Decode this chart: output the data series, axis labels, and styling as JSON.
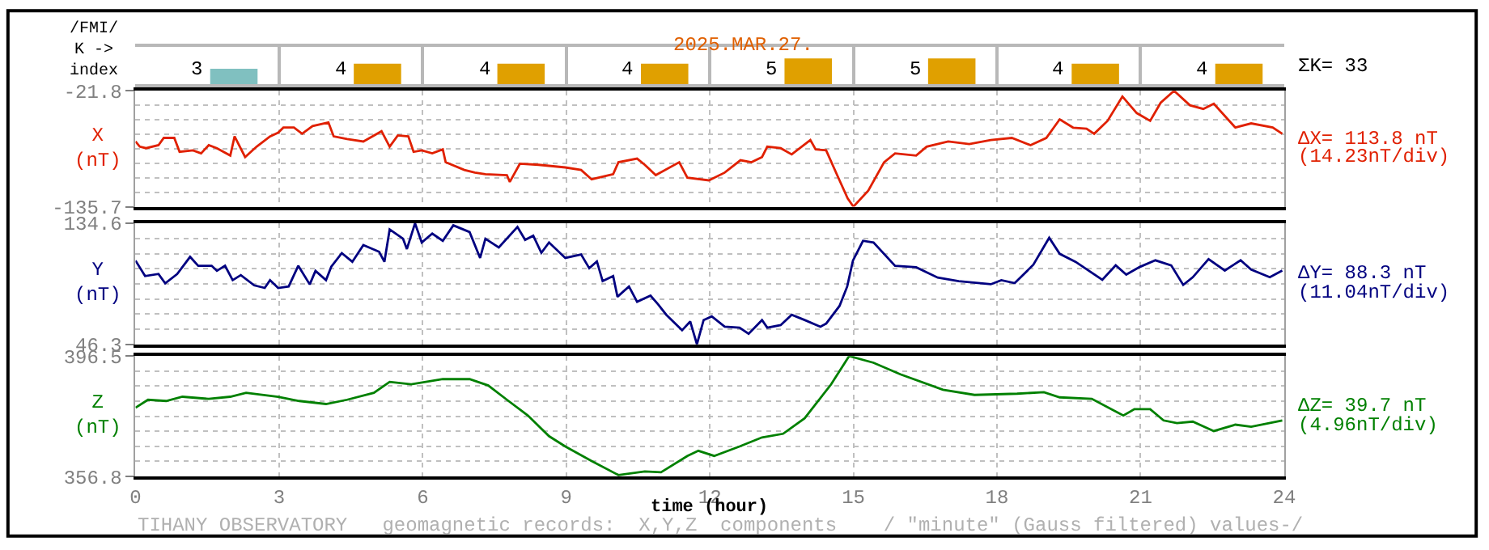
{
  "chart_data": [
    {
      "type": "bar",
      "title": "2025.MAR.27.",
      "ylabel": "/FMI/\nK ->\nindex",
      "categories": [
        null,
        null,
        null,
        null,
        null,
        null,
        null,
        null
      ],
      "values": [
        3,
        4,
        4,
        4,
        5,
        5,
        4,
        4
      ],
      "colors": [
        "#80c0c0",
        "#e0a000",
        "#e0a000",
        "#e0a000",
        "#e0a000",
        "#e0a000",
        "#e0a000",
        "#e0a000"
      ],
      "data_labels": true,
      "annotations": [
        "ΣK= 33"
      ],
      "tick_labels": false,
      "grid": "x"
    },
    {
      "type": "line",
      "ylabel": "X\n(nT)",
      "x": [
        0,
        0.09,
        0.22,
        0.48,
        0.59,
        0.81,
        0.92,
        1.2,
        1.37,
        1.53,
        1.7,
        1.98,
        2.07,
        2.29,
        2.53,
        2.81,
        2.98,
        3.09,
        3.31,
        3.48,
        3.7,
        4.03,
        4.14,
        4.42,
        4.76,
        5.14,
        5.31,
        5.48,
        5.7,
        5.81,
        5.98,
        6.2,
        6.42,
        6.48,
        6.87,
        7.09,
        7.31,
        7.76,
        7.82,
        8.03,
        8.42,
        8.98,
        9.31,
        9.53,
        9.98,
        10.09,
        10.48,
        10.64,
        10.87,
        11.36,
        11.53,
        11.98,
        12.31,
        12.64,
        12.87,
        13.09,
        13.2,
        13.48,
        13.71,
        14.1,
        14.21,
        14.43,
        14.66,
        14.88,
        15.0,
        15.31,
        15.64,
        15.87,
        16.31,
        16.53,
        16.98,
        17.42,
        17.87,
        18.31,
        18.7,
        19.03,
        19.31,
        19.59,
        19.87,
        20.03,
        20.31,
        20.62,
        20.92,
        21.2,
        21.42,
        21.7,
        22.03,
        22.31,
        22.53,
        22.98,
        23.31,
        23.76,
        23.96
      ],
      "series": [
        {
          "color": "#e02000",
          "values": [
            -71.6,
            -76.7,
            -78.2,
            -75.2,
            -68.1,
            -68.1,
            -81.8,
            -80.3,
            -83.3,
            -75.2,
            -78.2,
            -85.4,
            -66.6,
            -86.9,
            -76.7,
            -66.6,
            -63,
            -57.9,
            -57.9,
            -64,
            -56.4,
            -52.8,
            -66.6,
            -69.1,
            -71.6,
            -61.5,
            -76.7,
            -65.6,
            -66.6,
            -81.8,
            -80.3,
            -83.3,
            -79.3,
            -92,
            -99.6,
            -102.2,
            -103.7,
            -104.7,
            -111.3,
            -93.5,
            -94.5,
            -97.1,
            -99.6,
            -108.8,
            -103.7,
            -92,
            -88.4,
            -94.5,
            -104.7,
            -92,
            -107.2,
            -109.8,
            -102.2,
            -90,
            -92,
            -86.9,
            -76.7,
            -78.2,
            -84.3,
            -70.1,
            -79.3,
            -80.3,
            -104.7,
            -127.6,
            -135.7,
            -120,
            -92,
            -83.3,
            -85.4,
            -76.7,
            -71.6,
            -74.1,
            -70.1,
            -68.1,
            -75.2,
            -68.1,
            -49.8,
            -58,
            -59,
            -64,
            -51.3,
            -27.4,
            -43.7,
            -51.3,
            -33.5,
            -21.8,
            -36,
            -39.6,
            -34.5,
            -57.9,
            -53.8,
            -57.9,
            -64
          ]
        }
      ],
      "xlim": [
        0,
        24
      ],
      "xticks": [
        0,
        3,
        6,
        9,
        12,
        15,
        18,
        21,
        24
      ],
      "ylim": [
        -135.7,
        -21.8
      ],
      "yticks": [
        -135.7,
        {
          "value": -121.5,
          "label": null
        },
        {
          "value": -107.2,
          "label": null
        },
        {
          "value": -93.0,
          "label": null
        },
        {
          "value": -78.8,
          "label": null
        },
        {
          "value": -64.5,
          "label": null
        },
        {
          "value": -50.3,
          "label": null
        },
        {
          "value": -36.0,
          "label": null
        },
        -21.8
      ],
      "annotations": [
        "ΔX= 113.8 nT",
        "(14.23nT/div)"
      ],
      "tick_labels": "y",
      "grid": true
    },
    {
      "type": "line",
      "ylabel": "Y\n(nT)",
      "x": [
        0,
        0.2,
        0.48,
        0.62,
        0.87,
        1.14,
        1.31,
        1.59,
        1.7,
        1.87,
        2.03,
        2.2,
        2.48,
        2.7,
        2.81,
        2.98,
        3.2,
        3.4,
        3.64,
        3.76,
        3.98,
        4.09,
        4.31,
        4.53,
        4.76,
        5.09,
        5.2,
        5.31,
        5.59,
        5.67,
        5.84,
        5.98,
        6.2,
        6.42,
        6.64,
        6.98,
        7.2,
        7.31,
        7.59,
        7.98,
        8.14,
        8.31,
        8.48,
        8.64,
        8.98,
        9.31,
        9.48,
        9.64,
        9.76,
        9.98,
        10.07,
        10.31,
        10.48,
        10.76,
        10.92,
        11.09,
        11.42,
        11.59,
        11.73,
        11.87,
        12.04,
        12.31,
        12.62,
        12.81,
        13.09,
        13.2,
        13.48,
        13.71,
        13.98,
        14.31,
        14.43,
        14.71,
        14.87,
        14.99,
        15.2,
        15.42,
        15.87,
        16.31,
        16.76,
        17.2,
        17.87,
        18.09,
        18.37,
        18.76,
        19.09,
        19.31,
        19.64,
        20.2,
        20.48,
        20.7,
        20.98,
        21.31,
        21.64,
        21.89,
        22.09,
        22.42,
        22.76,
        23.09,
        23.31,
        23.7,
        23.96
      ],
      "series": [
        {
          "color": "#000080",
          "values": [
            107.4,
            96.1,
            97.6,
            90.8,
            97.6,
            110.1,
            103.6,
            103.6,
            99.9,
            103.6,
            93.1,
            96.8,
            89.3,
            87.4,
            93.1,
            87.4,
            88.5,
            103.6,
            90,
            99.9,
            93.1,
            102.9,
            112.8,
            106.5,
            118.7,
            113.8,
            106.5,
            130.1,
            123.3,
            115.8,
            134.6,
            120.6,
            127.1,
            121.8,
            133.1,
            128.2,
            109.3,
            123.3,
            116.9,
            131.9,
            122.5,
            125.5,
            113.1,
            120.6,
            109.3,
            111.9,
            101.8,
            106.8,
            92.4,
            96.1,
            81,
            88.5,
            77.3,
            81.8,
            75.4,
            67.8,
            56.5,
            62.9,
            46.3,
            64,
            66.6,
            59.1,
            58.4,
            53.9,
            64,
            58.4,
            60.3,
            67.8,
            64,
            59.1,
            61.4,
            74.3,
            88.5,
            107.4,
            121.8,
            120.6,
            103.6,
            102.5,
            95,
            92.4,
            90.1,
            93.1,
            90.9,
            104.4,
            124,
            112.3,
            106.5,
            93.3,
            103.9,
            97.1,
            102.7,
            107.6,
            103.9,
            89.6,
            95.2,
            108.4,
            100.1,
            107.6,
            100.8,
            95.2,
            100.1
          ]
        }
      ],
      "xlim": [
        0,
        24
      ],
      "xticks": [
        0,
        3,
        6,
        9,
        12,
        15,
        18,
        21,
        24
      ],
      "ylim": [
        46.3,
        134.6
      ],
      "yticks": [
        46.3,
        {
          "value": 57.3,
          "label": null
        },
        {
          "value": 68.4,
          "label": null
        },
        {
          "value": 79.4,
          "label": null
        },
        {
          "value": 90.5,
          "label": null
        },
        {
          "value": 101.5,
          "label": null
        },
        {
          "value": 112.5,
          "label": null
        },
        {
          "value": 123.6,
          "label": null
        },
        134.6
      ],
      "annotations": [
        "ΔY= 88.3 nT",
        "(11.04nT/div)"
      ],
      "tick_labels": "y",
      "grid": true
    },
    {
      "type": "line",
      "ylabel": "Z\n(nT)",
      "xlabel": "time (hour)",
      "x": [
        0,
        0.26,
        0.64,
        0.98,
        1.53,
        1.98,
        2.31,
        2.98,
        3.42,
        3.98,
        4.42,
        4.98,
        5.31,
        5.76,
        6.42,
        6.98,
        7.37,
        7.76,
        8.2,
        8.64,
        8.98,
        9.53,
        10.09,
        10.64,
        10.98,
        11.53,
        11.76,
        12.09,
        12.62,
        13.09,
        13.53,
        13.98,
        14.53,
        14.91,
        15.42,
        15.98,
        16.87,
        17.53,
        18.42,
        18.98,
        19.31,
        19.98,
        20.64,
        20.87,
        21.2,
        21.48,
        21.76,
        22.09,
        22.53,
        22.98,
        23.31,
        23.96
      ],
      "series": [
        {
          "color": "#008000",
          "values": [
            379.5,
            382.1,
            381.7,
            383.1,
            382.4,
            383.1,
            384.4,
            383.1,
            381.7,
            380.7,
            382.1,
            384.4,
            388,
            387.2,
            388.9,
            388.9,
            386.8,
            382.1,
            376.9,
            370.1,
            366.7,
            361.9,
            357.3,
            358.5,
            358.2,
            363.6,
            365.3,
            363.6,
            366.7,
            369.7,
            370.9,
            376,
            387.1,
            396.5,
            394.3,
            390.5,
            385.4,
            383.7,
            384.1,
            384.6,
            382.9,
            382.4,
            376.9,
            379,
            379,
            375.3,
            374.4,
            374.9,
            371.8,
            373.9,
            373.2,
            375.3
          ]
        }
      ],
      "xlim": [
        0,
        24
      ],
      "xticks": [
        0,
        3,
        6,
        9,
        12,
        15,
        18,
        21,
        24
      ],
      "ylim": [
        356.8,
        396.5
      ],
      "yticks": [
        356.8,
        {
          "value": 361.8,
          "label": null
        },
        {
          "value": 366.7,
          "label": null
        },
        {
          "value": 371.7,
          "label": null
        },
        {
          "value": 376.7,
          "label": null
        },
        {
          "value": 381.6,
          "label": null
        },
        {
          "value": 386.6,
          "label": null
        },
        {
          "value": 391.5,
          "label": null
        },
        396.5
      ],
      "annotations": [
        "ΔZ= 39.7 nT",
        "(4.96nT/div)",
        "TIHANY OBSERVATORY   geomagnetic records:  X,Y,Z  components    / \"minute\" (Gauss filtered) values-/"
      ],
      "grid": true
    }
  ]
}
